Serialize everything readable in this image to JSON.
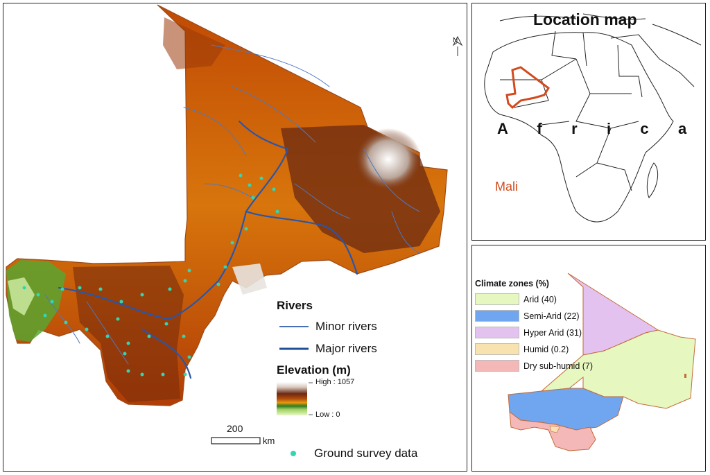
{
  "main_map": {
    "north_arrow": "N",
    "rivers_legend": {
      "title": "Rivers",
      "items": [
        {
          "label": "Minor rivers",
          "color": "#4a6fb5"
        },
        {
          "label": "Major rivers",
          "color": "#1f4e99"
        }
      ]
    },
    "elevation_legend": {
      "title": "Elevation (m)",
      "high_label": "High : 1057",
      "low_label": "Low : 0"
    },
    "scale_bar": {
      "value": "200",
      "unit": "km"
    },
    "survey_legend": {
      "label": "Ground survey data",
      "color": "#33d6b0"
    }
  },
  "location_map": {
    "title": "Location map",
    "continent_label": "A   f   r   i   c   a",
    "country_label": "Mali",
    "country_color": "#d24a1e"
  },
  "climate_map": {
    "title": "Climate zones (%)",
    "zones": [
      {
        "label": "Arid (40)",
        "color": "#e6f7c0"
      },
      {
        "label": "Semi-Arid (22)",
        "color": "#6fa6ef"
      },
      {
        "label": "Hyper Arid (31)",
        "color": "#e3c2f0"
      },
      {
        "label": "Humid (0.2)",
        "color": "#f8e3b0"
      },
      {
        "label": "Dry sub-humid (7)",
        "color": "#f5b8b8"
      }
    ]
  }
}
